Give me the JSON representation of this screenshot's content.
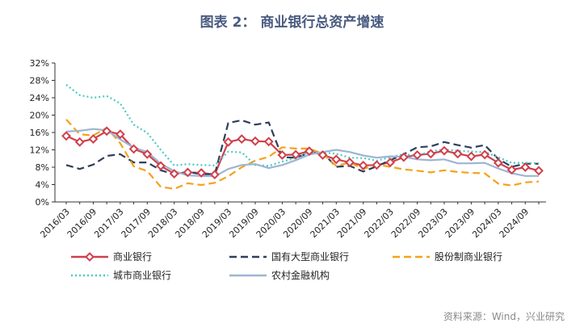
{
  "chart_data": {
    "type": "line",
    "title": "图表 2： 商业银行总资产增速",
    "source": "资料来源：Wind，兴业研究",
    "y_unit": "%",
    "ylim": [
      0,
      32
    ],
    "y_ticks": [
      "0%",
      "4%",
      "8%",
      "12%",
      "16%",
      "20%",
      "24%",
      "28%",
      "32%"
    ],
    "x": [
      "2016/03",
      "2016/06",
      "2016/09",
      "2016/12",
      "2017/03",
      "2017/06",
      "2017/09",
      "2017/12",
      "2018/03",
      "2018/06",
      "2018/09",
      "2018/12",
      "2019/03",
      "2019/06",
      "2019/09",
      "2019/12",
      "2020/03",
      "2020/06",
      "2020/09",
      "2020/12",
      "2021/03",
      "2021/06",
      "2021/09",
      "2021/12",
      "2022/03",
      "2022/06",
      "2022/09",
      "2022/12",
      "2023/03",
      "2023/06",
      "2023/09",
      "2023/12",
      "2024/03",
      "2024/06",
      "2024/09",
      "2024/12"
    ],
    "x_tick_labels": [
      "2016/03",
      "2016/09",
      "2017/03",
      "2017/09",
      "2018/03",
      "2018/09",
      "2019/03",
      "2019/09",
      "2020/03",
      "2020/09",
      "2021/03",
      "2021/09",
      "2022/03",
      "2022/09",
      "2023/03",
      "2023/09",
      "2024/03",
      "2024/09"
    ],
    "grid": false,
    "legend_position": "bottom",
    "series": [
      {
        "name": "商业银行",
        "color": "#d0404a",
        "style": "solid-diamond",
        "values": [
          15.2,
          13.8,
          14.5,
          16.3,
          15.6,
          12.2,
          11.0,
          8.3,
          6.5,
          6.8,
          6.7,
          6.3,
          13.8,
          14.5,
          14.0,
          13.9,
          10.8,
          10.9,
          11.7,
          10.8,
          9.8,
          9.1,
          8.4,
          8.5,
          9.1,
          10.3,
          10.8,
          11.1,
          11.8,
          11.1,
          10.5,
          10.9,
          9.0,
          7.4,
          8.0,
          7.2
        ]
      },
      {
        "name": "国有大型商业银行",
        "color": "#2e3f5c",
        "style": "dash",
        "values": [
          8.5,
          7.6,
          8.6,
          10.6,
          11.0,
          9.1,
          9.1,
          7.3,
          6.4,
          6.9,
          6.4,
          6.4,
          18.2,
          18.8,
          17.8,
          18.3,
          10.3,
          10.2,
          11.3,
          11.3,
          8.1,
          8.3,
          7.0,
          8.2,
          9.6,
          11.0,
          12.6,
          12.8,
          13.8,
          13.1,
          12.5,
          13.1,
          9.9,
          8.1,
          8.8,
          8.8
        ]
      },
      {
        "name": "股份制商业银行",
        "color": "#f4a21a",
        "style": "dash",
        "values": [
          19.0,
          15.6,
          15.3,
          17.1,
          13.5,
          8.2,
          7.1,
          3.5,
          3.0,
          4.3,
          3.9,
          4.4,
          5.9,
          8.0,
          9.5,
          10.4,
          12.6,
          12.3,
          12.3,
          11.1,
          8.3,
          9.1,
          7.6,
          8.6,
          8.1,
          7.5,
          7.2,
          6.8,
          7.3,
          6.9,
          6.7,
          6.6,
          4.2,
          3.8,
          4.5,
          4.7
        ]
      },
      {
        "name": "城市商业银行",
        "color": "#4ec8c2",
        "style": "dot",
        "values": [
          27.0,
          24.6,
          24.0,
          24.4,
          22.7,
          17.8,
          15.9,
          12.0,
          8.4,
          8.7,
          8.5,
          8.4,
          11.6,
          11.4,
          8.5,
          8.3,
          9.3,
          10.1,
          11.5,
          11.4,
          11.1,
          10.2,
          10.1,
          9.5,
          10.3,
          11.0,
          10.6,
          11.7,
          12.1,
          11.8,
          11.6,
          11.5,
          10.3,
          9.0,
          9.0,
          8.9
        ]
      },
      {
        "name": "农村金融机构",
        "color": "#9db5d3",
        "style": "solid",
        "values": [
          16.2,
          16.4,
          16.8,
          16.5,
          14.4,
          12.5,
          11.5,
          8.8,
          7.1,
          6.1,
          6.0,
          5.9,
          7.6,
          8.5,
          8.7,
          7.8,
          8.5,
          9.6,
          10.9,
          11.5,
          12.0,
          11.5,
          10.7,
          10.2,
          10.5,
          10.4,
          9.8,
          9.6,
          9.8,
          8.9,
          8.9,
          9.0,
          7.7,
          6.6,
          6.0,
          6.0
        ]
      }
    ]
  }
}
